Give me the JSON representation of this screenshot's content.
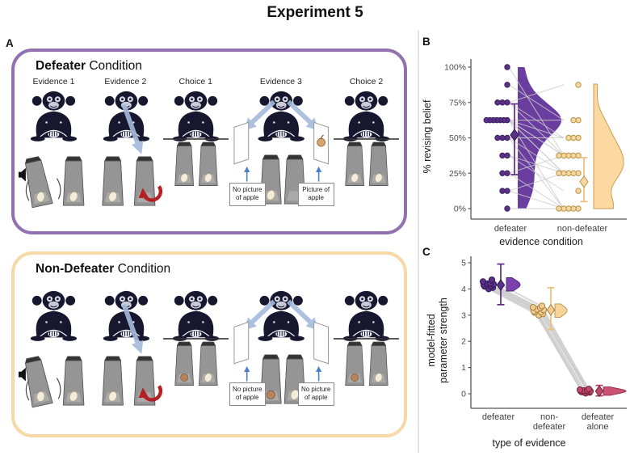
{
  "title": "Experiment 5",
  "panel_a": {
    "label": "A",
    "defeater": {
      "title_bold": "Defeater",
      "title_rest": " Condition",
      "border_color": "#9272ae",
      "columns": [
        "Evidence 1",
        "Evidence 2",
        "Choice 1",
        "Evidence 3",
        "Choice 2"
      ],
      "note_left": "No picture of apple",
      "note_right": "Picture of apple"
    },
    "non_defeater": {
      "title_bold": "Non-Defeater",
      "title_rest": " Condition",
      "border_color": "#f6d9a6",
      "note_left": "No picture of apple",
      "note_right": "No picture of apple"
    }
  },
  "panel_b_label": "B",
  "panel_c_label": "C",
  "chart_data": [
    {
      "panel": "B",
      "type": "raincloud",
      "title": "",
      "xlabel": "evidence condition",
      "ylabel": "% revising belief",
      "ylim": [
        0,
        100
      ],
      "grid": false,
      "legend": "none",
      "yticks": [
        {
          "v": 0,
          "label": "0%"
        },
        {
          "v": 25,
          "label": "25%"
        },
        {
          "v": 50,
          "label": "50%"
        },
        {
          "v": 75,
          "label": "75%"
        },
        {
          "v": 100,
          "label": "100%"
        }
      ],
      "categories": [
        "defeater",
        "non-defeater"
      ],
      "paired_lines": true,
      "series": [
        {
          "name": "defeater",
          "dot_color": "#5a3187",
          "dot_stroke": "#3a1f60",
          "violin_color": "#6a3e9e",
          "err_color": "#5b2d86",
          "mean": 52,
          "ci": [
            24,
            74
          ],
          "values": [
            100,
            87.5,
            75,
            75,
            75,
            62.5,
            62.5,
            62.5,
            62.5,
            62.5,
            62.5,
            62.5,
            50,
            50,
            50,
            37.5,
            37.5,
            25,
            25,
            12.5,
            12.5,
            0
          ]
        },
        {
          "name": "non-defeater",
          "dot_color": "#f6d7a0",
          "dot_stroke": "#b8924a",
          "violin_color": "#fbd9a0",
          "violin_stroke": "#c99c53",
          "err_color": "#edbf77",
          "mean": 19,
          "ci": [
            5,
            36
          ],
          "values": [
            37.5,
            62.5,
            87.5,
            37.5,
            50,
            62.5,
            37.5,
            25,
            0,
            50,
            37.5,
            25,
            50,
            25,
            0,
            25,
            12.5,
            37.5,
            0,
            25,
            0,
            0
          ]
        }
      ]
    },
    {
      "panel": "C",
      "type": "dot-interval",
      "title": "",
      "xlabel": "type of evidence",
      "ylabel": "model-fitted parameter strength",
      "ylabel_lines": [
        "model-fitted",
        "parameter strength"
      ],
      "ylim": [
        0,
        5
      ],
      "grid": false,
      "legend": "none",
      "yticks": [
        {
          "v": 0,
          "label": "0"
        },
        {
          "v": 1,
          "label": "1"
        },
        {
          "v": 2,
          "label": "2"
        },
        {
          "v": 3,
          "label": "3"
        },
        {
          "v": 4,
          "label": "4"
        },
        {
          "v": 5,
          "label": "5"
        }
      ],
      "categories": [
        "defeater",
        "non-\ndefeater",
        "defeater\nalone"
      ],
      "paired_lines": true,
      "series": [
        {
          "name": "defeater",
          "dot_color": "#5a3187",
          "dot_stroke": "#32175a",
          "violin_color": "#7b42ad",
          "violin_stroke": "#4a2378",
          "err_color": "#5b2d86",
          "mean": 4.15,
          "ci": [
            3.4,
            4.95
          ],
          "values": [
            4.0,
            4.05,
            4.1,
            4.12,
            4.15,
            4.18,
            4.2,
            4.22,
            4.28,
            4.35
          ]
        },
        {
          "name": "non-defeater",
          "dot_color": "#f2cd92",
          "dot_stroke": "#a8813c",
          "violin_color": "#f7d49a",
          "violin_stroke": "#bb8f45",
          "err_color": "#edbf77",
          "mean": 3.2,
          "ci": [
            2.45,
            4.05
          ],
          "values": [
            3.0,
            3.05,
            3.1,
            3.12,
            3.15,
            3.2,
            3.22,
            3.28,
            3.3,
            3.35
          ]
        },
        {
          "name": "defeater alone",
          "dot_color": "#c2496a",
          "dot_stroke": "#6f1f3c",
          "violin_color": "#ca5272",
          "violin_stroke": "#8f2b49",
          "err_color": "#b43a5e",
          "mean": 0.1,
          "ci": [
            -0.08,
            0.32
          ],
          "values": [
            0.02,
            0.05,
            0.07,
            0.08,
            0.1,
            0.1,
            0.12,
            0.13,
            0.15,
            0.18
          ]
        }
      ]
    }
  ]
}
